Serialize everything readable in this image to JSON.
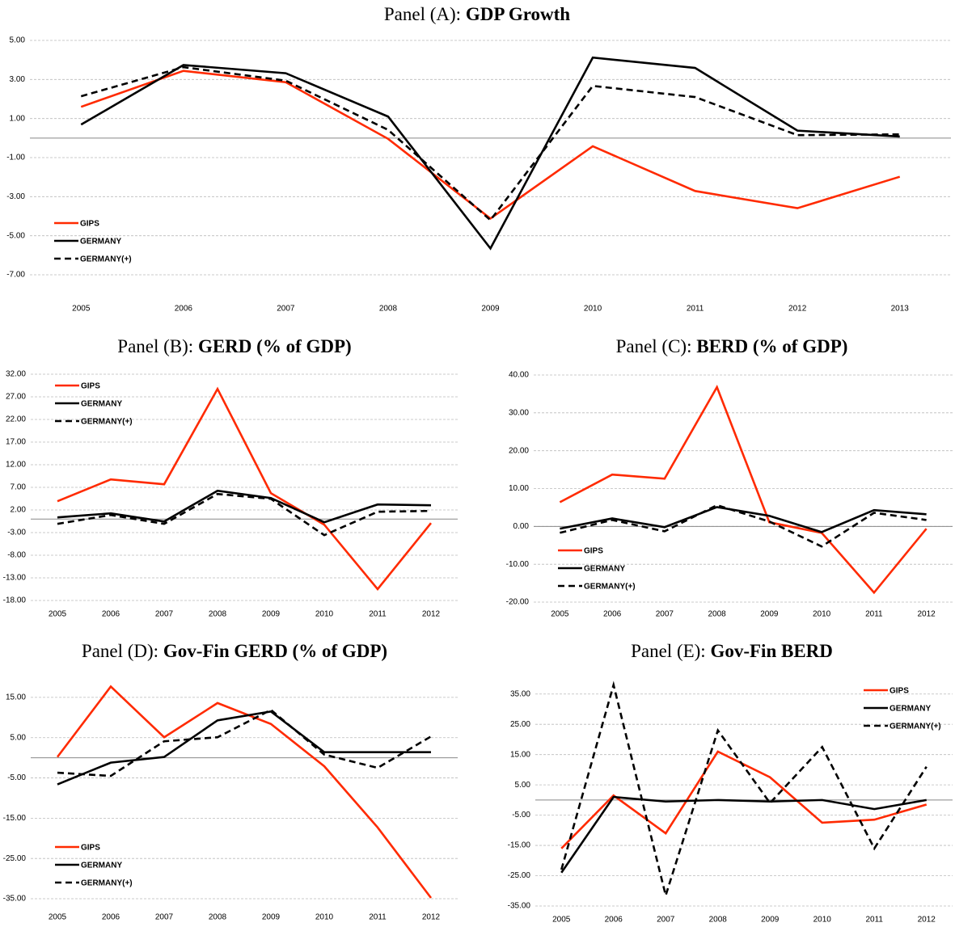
{
  "chart_data": [
    {
      "type": "line",
      "title": [
        "Panel (A):",
        "GDP Growth"
      ],
      "categories": [
        "2005",
        "2006",
        "2007",
        "2008",
        "2009",
        "2010",
        "2011",
        "2012",
        "2013"
      ],
      "series": [
        {
          "name": "GIPS",
          "color": "#ff2a00",
          "linestyle": "solid",
          "values": [
            1.6,
            3.44,
            2.86,
            -0.04,
            -4.12,
            -0.42,
            -2.71,
            -3.59,
            -1.98
          ]
        },
        {
          "name": "GERMANY",
          "color": "#000000",
          "linestyle": "solid",
          "values": [
            0.69,
            3.74,
            3.32,
            1.1,
            -5.65,
            4.12,
            3.59,
            0.38,
            0.08
          ]
        },
        {
          "name": "GERMANY(+)",
          "color": "#000000",
          "linestyle": "dashed",
          "values": [
            2.14,
            3.63,
            2.94,
            0.42,
            -4.2,
            2.67,
            2.1,
            0.15,
            0.19
          ]
        }
      ],
      "ylim": [
        -7,
        5
      ],
      "yticks": [
        {
          "value": 5,
          "label": "5.00"
        },
        {
          "value": 3,
          "label": "3.00"
        },
        {
          "value": 1,
          "label": "1.00"
        },
        {
          "value": -1,
          "label": "-1.00"
        },
        {
          "value": -3,
          "label": "-3.00"
        },
        {
          "value": -5,
          "label": "-5.00"
        },
        {
          "value": -7,
          "label": "-7.00"
        }
      ],
      "grid": true,
      "legend": "lower left"
    },
    {
      "type": "line",
      "title": [
        "Panel (B):",
        "GERD (% of GDP)"
      ],
      "categories": [
        "2005",
        "2006",
        "2007",
        "2008",
        "2009",
        "2010",
        "2011",
        "2012"
      ],
      "series": [
        {
          "name": "GIPS",
          "color": "#ff2a00",
          "linestyle": "solid",
          "values": [
            3.93,
            8.75,
            7.68,
            28.75,
            5.71,
            -1.25,
            -15.5,
            -0.89
          ]
        },
        {
          "name": "GERMANY",
          "color": "#000000",
          "linestyle": "solid",
          "values": [
            0.36,
            1.25,
            -0.54,
            6.25,
            4.64,
            -0.71,
            3.21,
            3.04
          ]
        },
        {
          "name": "GERMANY(+)",
          "color": "#000000",
          "linestyle": "dashed",
          "values": [
            -1.07,
            0.89,
            -1.07,
            5.54,
            4.46,
            -3.57,
            1.61,
            1.79
          ]
        }
      ],
      "ylim": [
        -18,
        32
      ],
      "yticks": [
        {
          "value": 32,
          "label": "32.00"
        },
        {
          "value": 27,
          "label": "27.00"
        },
        {
          "value": 22,
          "label": "22.00"
        },
        {
          "value": 17,
          "label": "17.00"
        },
        {
          "value": 12,
          "label": "12.00"
        },
        {
          "value": 7,
          "label": "7.00"
        },
        {
          "value": 2,
          "label": "2.00"
        },
        {
          "value": -3,
          "label": "-3.00"
        },
        {
          "value": -8,
          "label": "-8.00"
        },
        {
          "value": -13,
          "label": "-13.00"
        },
        {
          "value": -18,
          "label": "-18.00"
        }
      ],
      "grid": true,
      "legend": "upper left"
    },
    {
      "type": "line",
      "title": [
        "Panel (C):",
        "BERD (% of GDP)"
      ],
      "categories": [
        "2005",
        "2006",
        "2007",
        "2008",
        "2009",
        "2010",
        "2011",
        "2012"
      ],
      "series": [
        {
          "name": "GIPS",
          "color": "#ff2a00",
          "linestyle": "solid",
          "values": [
            6.4,
            13.7,
            12.6,
            36.8,
            1.1,
            -1.7,
            -17.5,
            -0.6
          ]
        },
        {
          "name": "GERMANY",
          "color": "#000000",
          "linestyle": "solid",
          "values": [
            -0.6,
            2.1,
            -0.2,
            5.1,
            2.8,
            -1.5,
            4.3,
            3.2
          ]
        },
        {
          "name": "GERMANY(+)",
          "color": "#000000",
          "linestyle": "dashed",
          "values": [
            -1.7,
            1.7,
            -1.3,
            5.6,
            1.3,
            -5.3,
            3.6,
            1.7
          ]
        }
      ],
      "ylim": [
        -20,
        40
      ],
      "yticks": [
        {
          "value": 40,
          "label": "40.00"
        },
        {
          "value": 30,
          "label": "30.00"
        },
        {
          "value": 20,
          "label": "20.00"
        },
        {
          "value": 10,
          "label": "10.00"
        },
        {
          "value": 0,
          "label": "0.00"
        },
        {
          "value": -10,
          "label": "-10.00"
        },
        {
          "value": -20,
          "label": "-20.00"
        }
      ],
      "grid": true,
      "legend": "lower left"
    },
    {
      "type": "line",
      "title": [
        "Panel (D):",
        "Gov-Fin GERD (% of GDP)"
      ],
      "categories": [
        "2005",
        "2006",
        "2007",
        "2008",
        "2009",
        "2010",
        "2011",
        "2012"
      ],
      "series": [
        {
          "name": "GIPS",
          "color": "#ff2a00",
          "linestyle": "solid",
          "values": [
            0.2,
            17.7,
            5.1,
            13.6,
            8.4,
            -2.1,
            -17.3,
            -34.8
          ]
        },
        {
          "name": "GERMANY",
          "color": "#000000",
          "linestyle": "solid",
          "values": [
            -6.6,
            -1.2,
            0.2,
            9.3,
            11.5,
            1.4,
            1.4,
            1.4
          ]
        },
        {
          "name": "GERMANY(+)",
          "color": "#000000",
          "linestyle": "dashed",
          "values": [
            -3.7,
            -4.5,
            4.1,
            5.1,
            11.9,
            0.8,
            -2.5,
            5.3
          ]
        }
      ],
      "ylim": [
        -35,
        20
      ],
      "yticks": [
        {
          "value": 15,
          "label": "15.00"
        },
        {
          "value": 5,
          "label": "5.00"
        },
        {
          "value": -5,
          "label": "-5.00"
        },
        {
          "value": -15,
          "label": "-15.00"
        },
        {
          "value": -25,
          "label": "-25.00"
        },
        {
          "value": -35,
          "label": "-35.00"
        }
      ],
      "grid": true,
      "legend": "lower left"
    },
    {
      "type": "line",
      "title": [
        "Panel (E):",
        "Gov-Fin BERD"
      ],
      "categories": [
        "2005",
        "2006",
        "2007",
        "2008",
        "2009",
        "2010",
        "2011",
        "2012"
      ],
      "series": [
        {
          "name": "GIPS",
          "color": "#ff2a00",
          "linestyle": "solid",
          "values": [
            -16,
            1.5,
            -11,
            16,
            7.5,
            -7.5,
            -6.5,
            -1.5
          ]
        },
        {
          "name": "GERMANY",
          "color": "#000000",
          "linestyle": "solid",
          "values": [
            -24,
            1,
            -0.5,
            0,
            -0.5,
            0,
            -3,
            0
          ]
        },
        {
          "name": "GERMANY(+)",
          "color": "#000000",
          "linestyle": "dashed",
          "values": [
            -23,
            38,
            -31.5,
            23,
            -1,
            17.5,
            -16,
            11
          ]
        }
      ],
      "ylim": [
        -35,
        40
      ],
      "yticks": [
        {
          "value": 35,
          "label": "35.00"
        },
        {
          "value": 25,
          "label": "25.00"
        },
        {
          "value": 15,
          "label": "15.00"
        },
        {
          "value": 5,
          "label": "5.00"
        },
        {
          "value": -5,
          "label": "-5.00"
        },
        {
          "value": -15,
          "label": "-15.00"
        },
        {
          "value": -25,
          "label": "-25.00"
        },
        {
          "value": -35,
          "label": "-35.00"
        }
      ],
      "grid": true,
      "legend": "upper right"
    }
  ]
}
